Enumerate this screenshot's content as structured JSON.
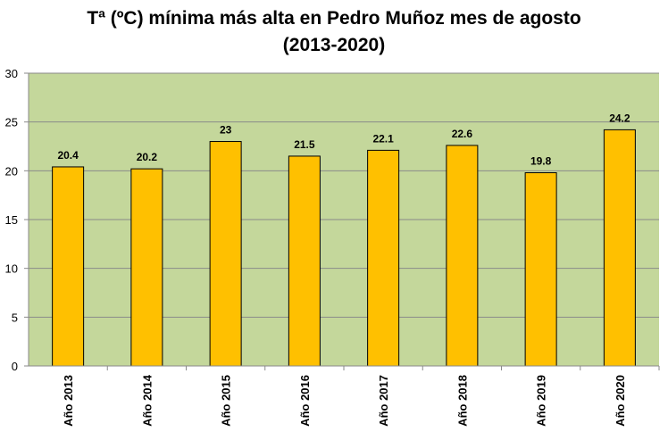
{
  "chart_data": {
    "type": "bar",
    "title_line1": "Tª (ºC) mínima más alta en Pedro Muñoz mes de agosto",
    "title_line2": "(2013-2020)",
    "categories": [
      "Año 2013",
      "Año 2014",
      "Año 2015",
      "Año 2016",
      "Año 2017",
      "Año 2018",
      "Año 2019",
      "Año 2020"
    ],
    "values": [
      20.4,
      20.2,
      23,
      21.5,
      22.1,
      22.6,
      19.8,
      24.2
    ],
    "data_labels": [
      "20.4",
      "20.2",
      "23",
      "21.5",
      "22.1",
      "22.6",
      "19.8",
      "24.2"
    ],
    "ylim": [
      0,
      30
    ],
    "yticks": [
      0,
      5,
      10,
      15,
      20,
      25,
      30
    ],
    "grid": true,
    "legend": "none",
    "colors": {
      "plot_background": "#c4d79b",
      "bar_fill": "#ffc000",
      "bar_stroke": "#000000",
      "grid": "#8a8a8a"
    }
  }
}
